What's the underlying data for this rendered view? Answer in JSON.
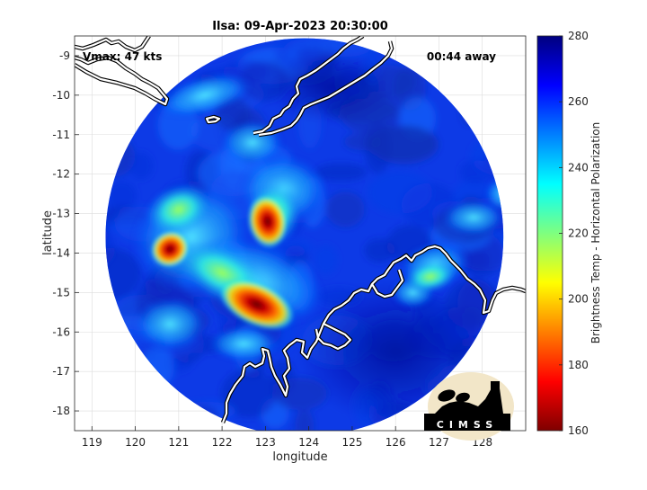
{
  "chart_data": {
    "type": "heatmap",
    "title": "Ilsa: 09-Apr-2023 20:30:00",
    "xlabel": "longitude",
    "ylabel": "latitude",
    "xlim": [
      118.6,
      129.0
    ],
    "ylim": [
      -18.5,
      -8.5
    ],
    "xticks": [
      119,
      120,
      121,
      122,
      123,
      124,
      125,
      126,
      127,
      128
    ],
    "yticks": [
      -9,
      -10,
      -11,
      -12,
      -13,
      -14,
      -15,
      -16,
      -17,
      -18
    ],
    "grid": true,
    "annotations": {
      "vmax": "Vmax: 47 kts",
      "time_away": "00:44 away"
    },
    "colorbar": {
      "label": "Brightness Temp - Horizontal Polarization",
      "min": 160,
      "max": 280,
      "ticks": [
        160,
        180,
        200,
        220,
        240,
        260,
        280
      ],
      "colors": [
        "#7f0000",
        "#ff0000",
        "#ff7f00",
        "#ffff00",
        "#7fff7f",
        "#00ffff",
        "#007fff",
        "#0000ff",
        "#00007f"
      ]
    },
    "swath": {
      "center": [
        123.9,
        -13.6
      ],
      "radius_deg_lon": 4.85,
      "radius_deg_lat": 4.75,
      "background_temp": 268
    },
    "features": [
      {
        "name": "rainband-west",
        "lon": 120.8,
        "lat": -13.9,
        "min_temp": 175
      },
      {
        "name": "rainband-central",
        "lon": 123.05,
        "lat": -13.2,
        "min_temp": 180
      },
      {
        "name": "core-south",
        "lon": 122.8,
        "lat": -15.3,
        "min_temp": 165
      },
      {
        "name": "outer-band-northeast",
        "lon": 126.8,
        "lat": -14.6,
        "min_temp": 245
      }
    ],
    "logo": {
      "text": "CIMSS"
    }
  }
}
